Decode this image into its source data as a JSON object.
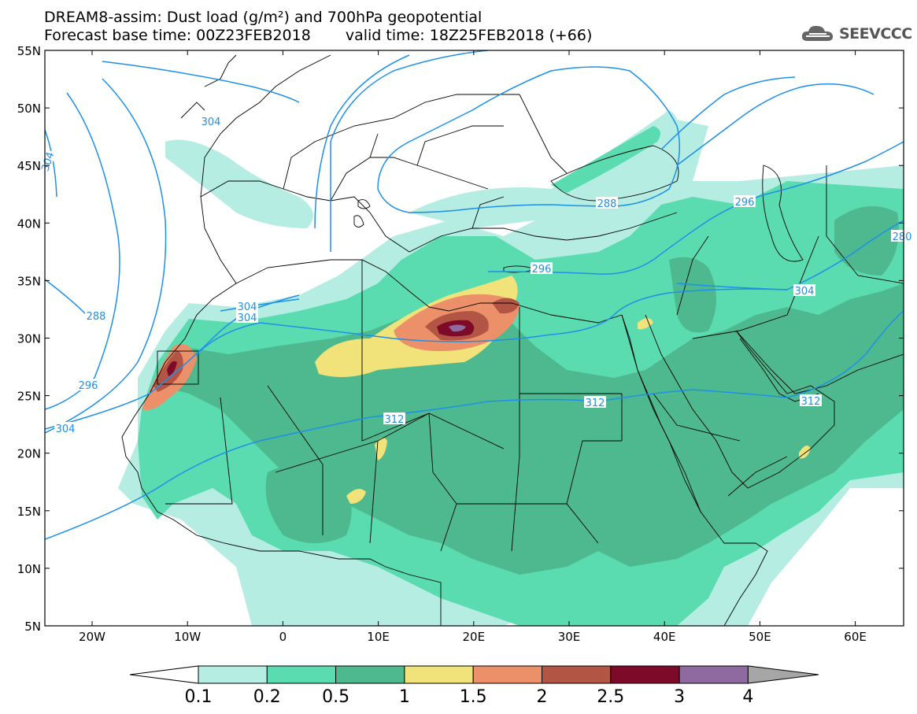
{
  "header": {
    "title_line1": "DREAM8-assim: Dust load (g/m²) and 700hPa geopotential",
    "forecast_base": "Forecast base time: 00Z23FEB2018",
    "valid_time": "valid time: 18Z25FEB2018 (+66)"
  },
  "logo": {
    "text": "SEEVCCC",
    "icon": "cloud-icon"
  },
  "map": {
    "lat_labels": [
      "55N",
      "50N",
      "45N",
      "40N",
      "35N",
      "30N",
      "25N",
      "20N",
      "15N",
      "10N",
      "5N"
    ],
    "lon_labels": [
      "20W",
      "10W",
      "0",
      "10E",
      "20E",
      "30E",
      "40E",
      "50E",
      "60E"
    ],
    "contours": [
      {
        "label": "304"
      },
      {
        "label": "288"
      },
      {
        "label": "296"
      },
      {
        "label": "304"
      },
      {
        "label": "304"
      },
      {
        "label": "304"
      },
      {
        "label": "288"
      },
      {
        "label": "296"
      },
      {
        "label": "296"
      },
      {
        "label": "304"
      },
      {
        "label": "312"
      },
      {
        "label": "312"
      },
      {
        "label": "312"
      },
      {
        "label": "304"
      },
      {
        "label": "280"
      }
    ],
    "colors": {
      "land_bg": "#ffffff",
      "border": "#000000",
      "contour": "#1e90e8"
    }
  },
  "colorbar": {
    "labels": [
      "0.1",
      "0.2",
      "0.5",
      "1",
      "1.5",
      "2",
      "2.5",
      "3",
      "4"
    ],
    "bins": [
      "#b5ede3",
      "#5bdcb0",
      "#4eb88e",
      "#f2e27a",
      "#ec906a",
      "#b35545",
      "#7d0a28",
      "#8f6aa0"
    ],
    "under_color": "#ffffff",
    "over_color": "#a6a6a6"
  }
}
